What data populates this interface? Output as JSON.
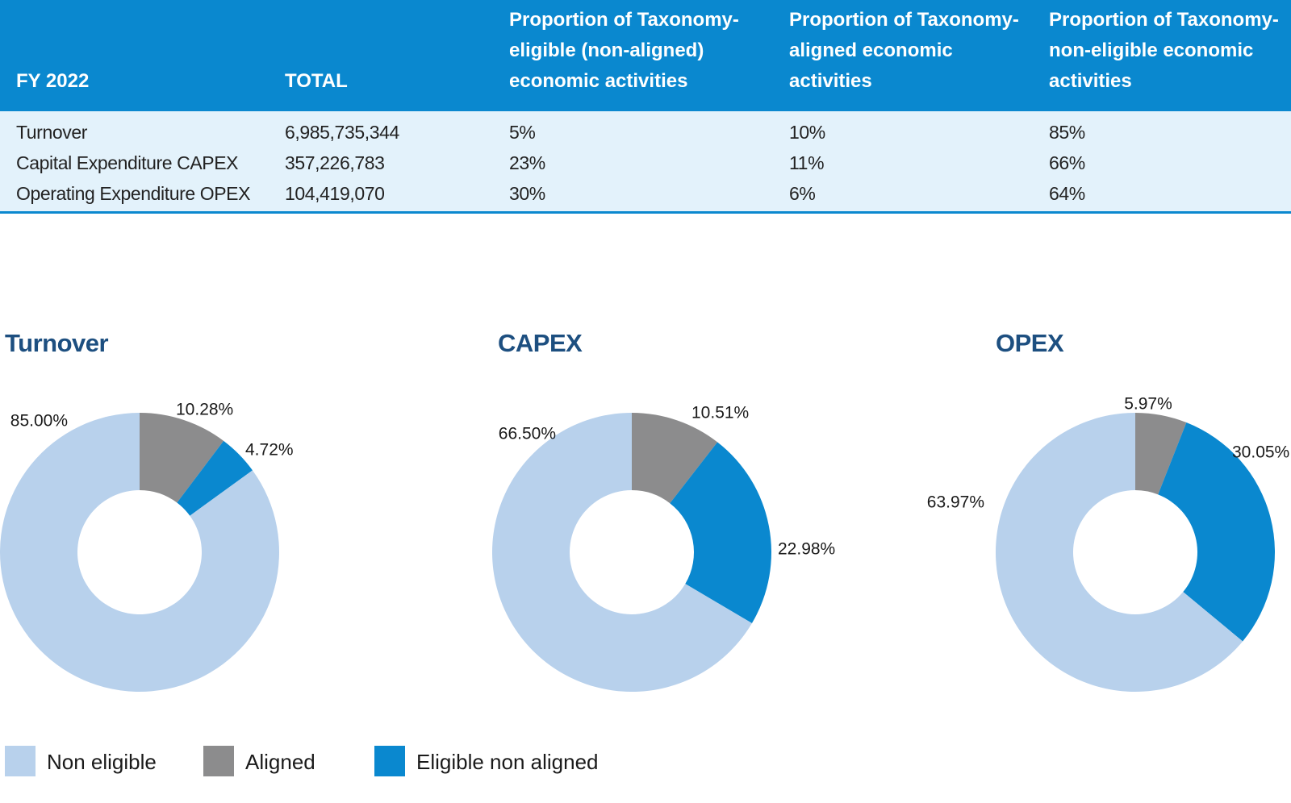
{
  "table": {
    "headers": [
      [
        "FY 2022"
      ],
      [
        "TOTAL"
      ],
      [
        "Proportion of Taxonomy-",
        "eligible (non-aligned)",
        "economic activities"
      ],
      [
        "Proportion of Taxonomy-",
        "aligned economic",
        "activities"
      ],
      [
        "Proportion of Taxonomy-",
        "non-eligible economic",
        "activities"
      ]
    ],
    "rows": [
      [
        "Turnover",
        "6,985,735,344",
        "5%",
        "10%",
        "85%"
      ],
      [
        "Capital Expenditure CAPEX",
        "357,226,783",
        "23%",
        "11%",
        "66%"
      ],
      [
        "Operating Expenditure OPEX",
        "104,419,070",
        "30%",
        "6%",
        "64%"
      ]
    ]
  },
  "colors": {
    "header_bg": "#0a88cf",
    "body_bg": "#e3f2fb",
    "non_eligible": "#b8d1ec",
    "aligned": "#8c8c8d",
    "eligible_non_aligned": "#0a88cf",
    "title": "#1d4f80"
  },
  "chart_data": [
    {
      "type": "pie",
      "title": "Turnover",
      "slices": [
        {
          "name": "Aligned",
          "value": 10.28,
          "label": "10.28%"
        },
        {
          "name": "Eligible non aligned",
          "value": 4.72,
          "label": "4.72%"
        },
        {
          "name": "Non eligible",
          "value": 85.0,
          "label": "85.00%"
        }
      ]
    },
    {
      "type": "pie",
      "title": "CAPEX",
      "slices": [
        {
          "name": "Aligned",
          "value": 10.51,
          "label": "10.51%"
        },
        {
          "name": "Eligible non aligned",
          "value": 22.98,
          "label": "22.98%"
        },
        {
          "name": "Non eligible",
          "value": 66.5,
          "label": "66.50%"
        }
      ]
    },
    {
      "type": "pie",
      "title": "OPEX",
      "slices": [
        {
          "name": "Aligned",
          "value": 5.97,
          "label": "5.97%"
        },
        {
          "name": "Eligible non aligned",
          "value": 30.05,
          "label": "30.05%"
        },
        {
          "name": "Non eligible",
          "value": 63.97,
          "label": "63.97%"
        }
      ]
    }
  ],
  "legend": [
    {
      "label": "Non eligible",
      "color": "#b8d1ec"
    },
    {
      "label": "Aligned",
      "color": "#8c8c8d"
    },
    {
      "label": "Eligible non aligned",
      "color": "#0a88cf"
    }
  ]
}
